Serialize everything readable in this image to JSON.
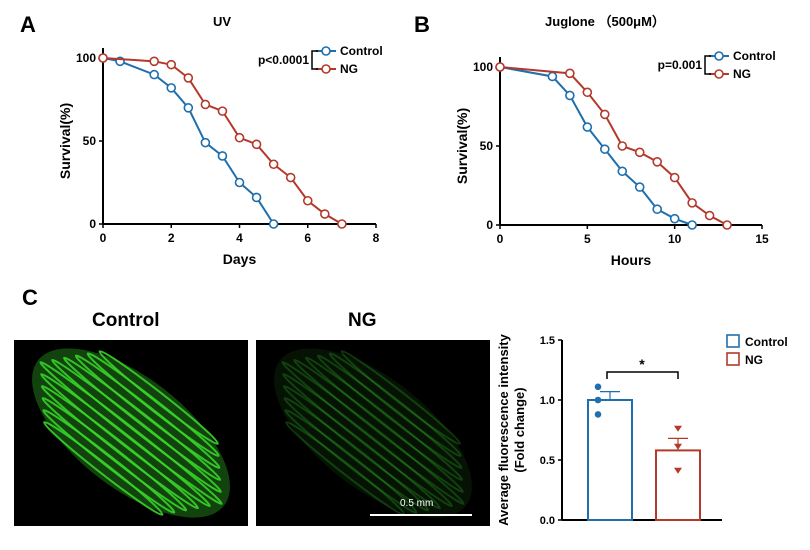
{
  "panels": {
    "a": "A",
    "b": "B",
    "c": "C"
  },
  "images": {
    "control_label": "Control",
    "ng_label": "NG",
    "scale_bar": "0.5 mm",
    "fluorescence_color": "#39d12a"
  },
  "colors": {
    "control": "#1f6fad",
    "ng": "#b33a2b"
  },
  "chart_data": [
    {
      "type": "line",
      "title": "UV",
      "xlabel": "Days",
      "ylabel": "Survival(%)",
      "xlim": [
        0,
        8
      ],
      "ylim": [
        0,
        100
      ],
      "xticks": [
        0,
        2,
        4,
        6,
        8
      ],
      "yticks": [
        0,
        50,
        100
      ],
      "annotation": "p<0.0001",
      "legend_placement": "top-right",
      "series": [
        {
          "name": "Control",
          "x": [
            0,
            0.5,
            1.5,
            2,
            2.5,
            3,
            3.5,
            4,
            4.5,
            5
          ],
          "y": [
            100,
            98,
            90,
            82,
            70,
            49,
            41,
            25,
            16,
            0
          ]
        },
        {
          "name": "NG",
          "x": [
            0,
            1.5,
            2,
            2.5,
            3,
            3.5,
            4,
            4.5,
            5,
            5.5,
            6,
            6.5,
            7
          ],
          "y": [
            100,
            98,
            96,
            88,
            72,
            68,
            52,
            48,
            36,
            28,
            14,
            6,
            0
          ]
        }
      ]
    },
    {
      "type": "line",
      "title": "Juglone （500μM）",
      "xlabel": "Hours",
      "ylabel": "Survival(%)",
      "xlim": [
        0,
        15
      ],
      "ylim": [
        0,
        100
      ],
      "xticks": [
        0,
        5,
        10,
        15
      ],
      "yticks": [
        0,
        50,
        100
      ],
      "annotation": "p=0.001",
      "legend_placement": "top-right",
      "series": [
        {
          "name": "Control",
          "x": [
            0,
            3,
            4,
            5,
            6,
            7,
            8,
            9,
            10,
            11
          ],
          "y": [
            100,
            94,
            82,
            62,
            48,
            34,
            24,
            10,
            4,
            0
          ]
        },
        {
          "name": "NG",
          "x": [
            0,
            4,
            5,
            6,
            7,
            8,
            9,
            10,
            11,
            12,
            13
          ],
          "y": [
            100,
            96,
            84,
            70,
            50,
            46,
            40,
            30,
            14,
            6,
            0
          ]
        }
      ]
    },
    {
      "type": "bar",
      "ylabel": "Average fluorescence intensity",
      "ylabel2": "(Fold change)",
      "ylim": [
        0,
        1.5
      ],
      "yticks": [
        "0.0",
        "0.5",
        "1.0",
        "1.5"
      ],
      "significance": "*",
      "legend_placement": "top-right",
      "categories": [
        "Control",
        "NG"
      ],
      "values": [
        1.0,
        0.58
      ],
      "errors": [
        0.07,
        0.1
      ],
      "points": [
        [
          1.11,
          1.0,
          0.88
        ],
        [
          0.76,
          0.61,
          0.41
        ]
      ]
    }
  ]
}
